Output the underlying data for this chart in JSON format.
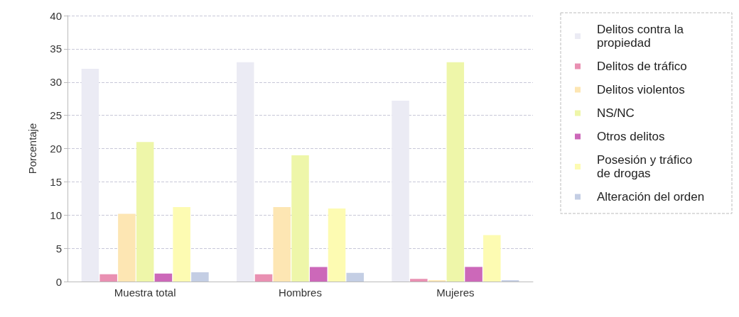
{
  "chart_data": {
    "type": "bar",
    "ylabel": "Porcentaje",
    "categories": [
      "Muestra total",
      "Hombres",
      "Mujeres"
    ],
    "series": [
      {
        "name": "Delitos contra la propiedad",
        "color": "#ebebf4",
        "values": [
          32,
          33,
          27.2
        ]
      },
      {
        "name": "Delitos de tráfico",
        "color": "#e990b2",
        "values": [
          1.1,
          1.1,
          0.4
        ]
      },
      {
        "name": "Delitos violentos",
        "color": "#fde6b3",
        "values": [
          10.2,
          11.2,
          0.2
        ]
      },
      {
        "name": "NS/NC",
        "color": "#eef6a9",
        "values": [
          21,
          19,
          33
        ]
      },
      {
        "name": "Otros delitos",
        "color": "#cc68b9",
        "values": [
          1.2,
          2.2,
          2.2
        ]
      },
      {
        "name": "Posesión y tráfico de drogas",
        "color": "#fdfbb2",
        "values": [
          11.2,
          11,
          7
        ]
      },
      {
        "name": "Alteración del orden",
        "color": "#c4cee4",
        "values": [
          1.4,
          1.3,
          0.2
        ]
      }
    ],
    "ylim": [
      0,
      40
    ],
    "yticks": [
      0,
      5,
      10,
      15,
      20,
      25,
      30,
      35,
      40
    ],
    "grid": "y",
    "legend": "right"
  }
}
